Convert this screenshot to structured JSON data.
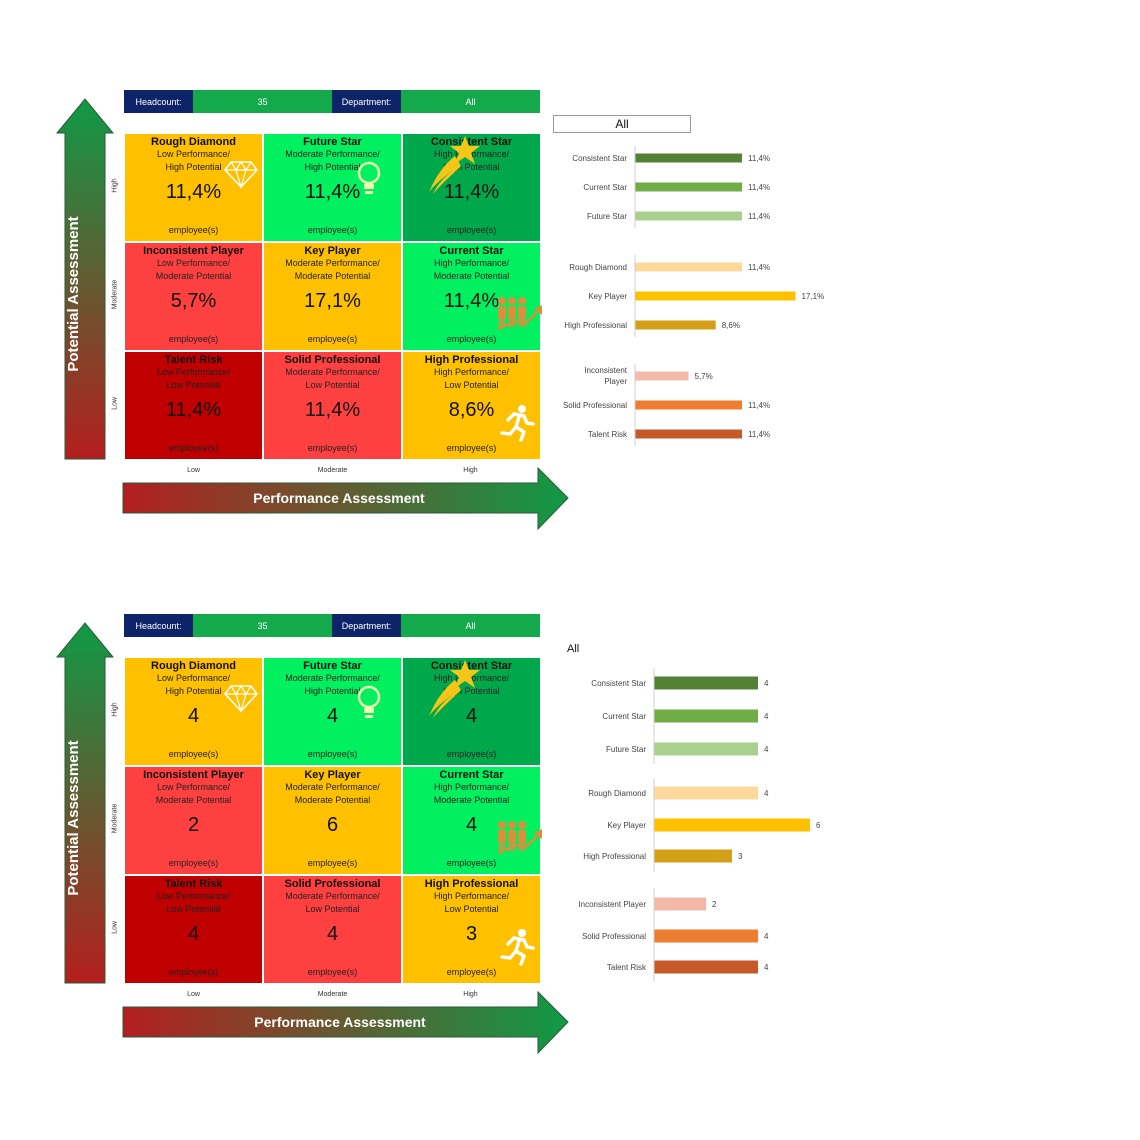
{
  "header": {
    "headcount_label": "Headcount:",
    "headcount_value": "35",
    "department_label": "Department:",
    "department_value": "All"
  },
  "axes": {
    "y_title": "Potential Assessment",
    "x_title": "Performance Assessment",
    "y_levels": [
      "High",
      "Moderate",
      "Low"
    ],
    "x_levels": [
      "Low",
      "Moderate",
      "High"
    ]
  },
  "colors": {
    "yellow": "#ffc000",
    "light_green": "#00f060",
    "dark_green": "#00a84c",
    "light_red": "#ff4040",
    "dark_red": "#c00000",
    "header_navy": "#0e2468",
    "header_green": "#14a94a"
  },
  "cells": [
    {
      "name": "Rough Diamond",
      "desc1": "Low Performance/",
      "desc2": "High Potential",
      "unit": "employee(s)",
      "percent": "11,4%",
      "count": "4",
      "color": "#ffc000",
      "icon": "diamond-icon"
    },
    {
      "name": "Future Star",
      "desc1": "Moderate Performance/",
      "desc2": "High Potential",
      "unit": "employee(s)",
      "percent": "11,4%",
      "count": "4",
      "color": "#00f060",
      "icon": "lightbulb-icon"
    },
    {
      "name": "Consistent Star",
      "desc1": "High Performance/",
      "desc2": "High Potential",
      "unit": "employee(s)",
      "percent": "11,4%",
      "count": "4",
      "color": "#00a84c",
      "icon": "shooting-star-icon"
    },
    {
      "name": "Inconsistent Player",
      "desc1": "Low Performance/",
      "desc2": "Moderate Potential",
      "unit": "employee(s)",
      "percent": "5,7%",
      "count": "2",
      "color": "#ff4040",
      "icon": ""
    },
    {
      "name": "Key Player",
      "desc1": "Moderate Performance/",
      "desc2": "Moderate Potential",
      "unit": "employee(s)",
      "percent": "17,1%",
      "count": "6",
      "color": "#ffc000",
      "icon": ""
    },
    {
      "name": "Current Star",
      "desc1": "High Performance/",
      "desc2": "Moderate Potential",
      "unit": "employee(s)",
      "percent": "11,4%",
      "count": "4",
      "color": "#00f060",
      "icon": "team-growth-icon"
    },
    {
      "name": "Talent Risk",
      "desc1": "Low Performance/",
      "desc2": "Low Potential",
      "unit": "employee(s)",
      "percent": "11,4%",
      "count": "4",
      "color": "#c00000",
      "icon": ""
    },
    {
      "name": "Solid Professional",
      "desc1": "Moderate Performance/",
      "desc2": "Low Potential",
      "unit": "employee(s)",
      "percent": "11,4%",
      "count": "4",
      "color": "#ff4040",
      "icon": ""
    },
    {
      "name": "High Professional",
      "desc1": "High Performance/",
      "desc2": "Low Potential",
      "unit": "employee(s)",
      "percent": "8,6%",
      "count": "3",
      "color": "#ffc000",
      "icon": "runner-icon"
    }
  ],
  "chart_data": [
    {
      "type": "bar",
      "orientation": "horizontal",
      "title": "All",
      "categories": [
        "Consistent Star",
        "Current Star",
        "Future Star",
        "Rough Diamond",
        "Key Player",
        "High Professional",
        "Inconsistent Player",
        "Solid Professional",
        "Talent Risk"
      ],
      "values": [
        11.4,
        11.4,
        11.4,
        11.4,
        17.1,
        8.6,
        5.7,
        11.4,
        11.4
      ],
      "value_labels": [
        "11,4%",
        "11,4%",
        "11,4%",
        "11,4%",
        "17,1%",
        "8,6%",
        "5,7%",
        "11,4%",
        "11,4%"
      ],
      "bar_colors": [
        "#548235",
        "#70ad47",
        "#a9d08e",
        "#ffd99b",
        "#ffc000",
        "#d4a017",
        "#f4b8a6",
        "#ed7d31",
        "#c55a28"
      ],
      "grid": false
    },
    {
      "type": "bar",
      "orientation": "horizontal",
      "title": "All",
      "categories": [
        "Consistent Star",
        "Current Star",
        "Future Star",
        "Rough Diamond",
        "Key Player",
        "High Professional",
        "Inconsistent Player",
        "Solid Professional",
        "Talent Risk"
      ],
      "values": [
        4,
        4,
        4,
        4,
        6,
        3,
        2,
        4,
        4
      ],
      "value_labels": [
        "4",
        "4",
        "4",
        "4",
        "6",
        "3",
        "2",
        "4",
        "4"
      ],
      "bar_colors": [
        "#548235",
        "#70ad47",
        "#a9d08e",
        "#ffd99b",
        "#ffc000",
        "#d4a017",
        "#f4b8a6",
        "#ed7d31",
        "#c55a28"
      ],
      "grid": false
    }
  ]
}
